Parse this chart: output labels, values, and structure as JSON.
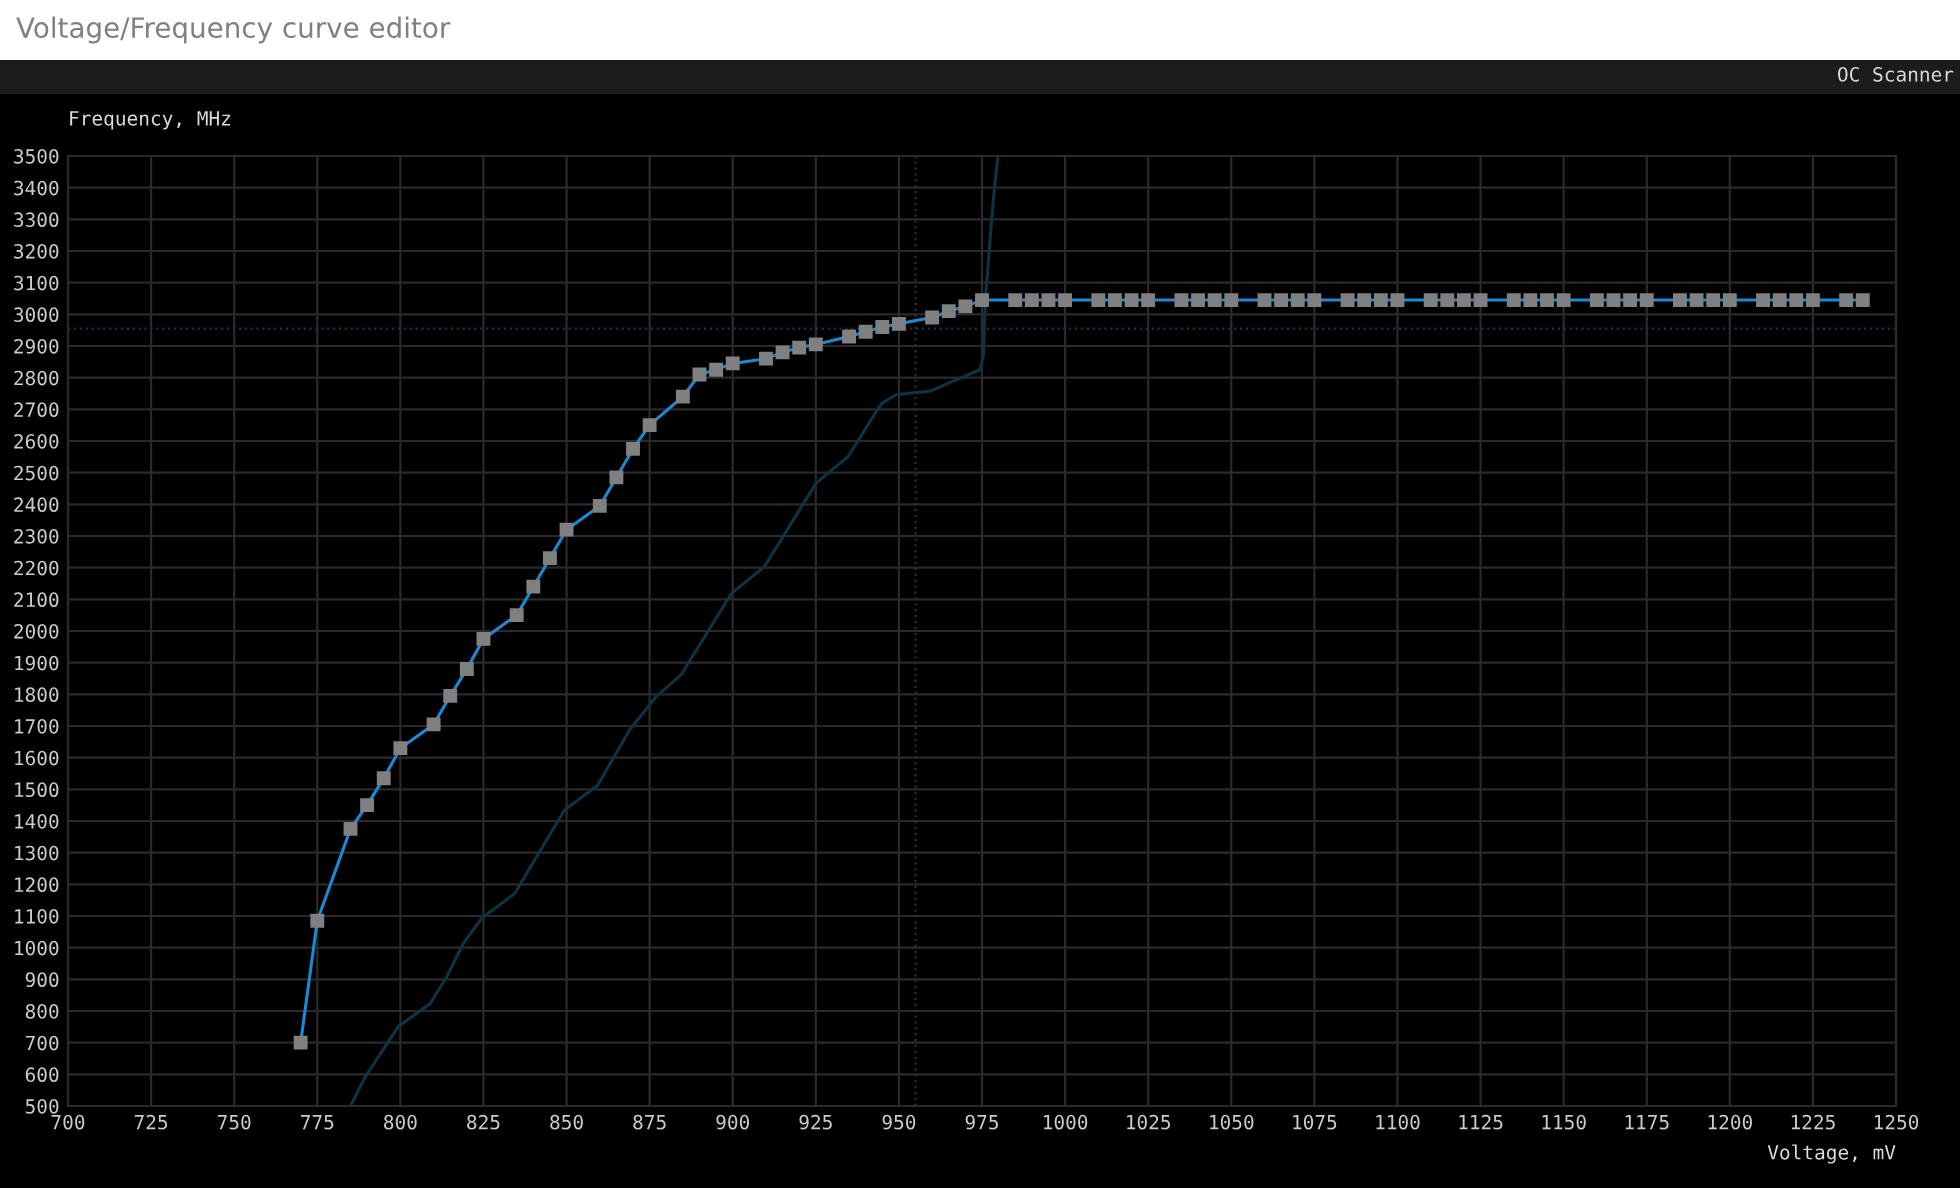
{
  "chart_data": {
    "type": "line",
    "title": "Voltage/Frequency curve editor",
    "xlabel": "Voltage, mV",
    "ylabel": "Frequency, MHz",
    "annotations": [
      "OC Scanner"
    ],
    "xlim": [
      700,
      1250
    ],
    "ylim": [
      500,
      3500
    ],
    "xticks": [
      700,
      725,
      750,
      775,
      800,
      825,
      850,
      875,
      900,
      925,
      950,
      975,
      1000,
      1025,
      1050,
      1075,
      1100,
      1125,
      1150,
      1175,
      1200,
      1225,
      1250
    ],
    "yticks": [
      500,
      600,
      700,
      800,
      900,
      1000,
      1100,
      1200,
      1300,
      1400,
      1500,
      1600,
      1700,
      1800,
      1900,
      2000,
      2100,
      2200,
      2300,
      2400,
      2500,
      2600,
      2700,
      2800,
      2900,
      3000,
      3100,
      3200,
      3300,
      3400,
      3500
    ],
    "grid": true,
    "legend": false,
    "ref_lines": [
      {
        "axis": "y",
        "value": 2955,
        "color": "#103848",
        "line_style": "dotted"
      },
      {
        "axis": "x",
        "value": 955,
        "color": "#103848",
        "line_style": "dotted"
      }
    ],
    "series": [
      {
        "color": "#0d3344",
        "marker": "none",
        "line_style": "solid",
        "x": [
          785,
          789.5,
          799.3,
          809,
          814,
          819,
          824.4,
          834.4,
          849.4,
          859.4,
          869,
          877,
          884.5,
          899.6,
          909.6,
          925,
          934.7,
          944.8,
          949.3,
          959.3,
          964.7,
          974.4,
          975.4,
          976,
          978.4,
          979.8
        ],
        "values": [
          500,
          593,
          750,
          824,
          909,
          1014,
          1092,
          1171,
          1435,
          1513,
          1688,
          1793,
          1862,
          2119,
          2204,
          2466,
          2551,
          2719,
          2747,
          2757,
          2782,
          2825,
          2867,
          3045,
          3362,
          3500
        ]
      },
      {
        "color": "#1a8ad4",
        "marker": "square",
        "line_style": "solid",
        "x": [
          770,
          775,
          785,
          790,
          795,
          800,
          810,
          815,
          820,
          825,
          835,
          840,
          845,
          850,
          860,
          865,
          870,
          875,
          885,
          890,
          895,
          900,
          910,
          915,
          920,
          925,
          935,
          940,
          945,
          950,
          960,
          965,
          970,
          975,
          985,
          990,
          995,
          1000,
          1010,
          1015,
          1020,
          1025,
          1035,
          1040,
          1045,
          1050,
          1060,
          1065,
          1070,
          1075,
          1085,
          1090,
          1095,
          1100,
          1110,
          1115,
          1120,
          1125,
          1135,
          1140,
          1145,
          1150,
          1160,
          1165,
          1170,
          1175,
          1185,
          1190,
          1195,
          1200,
          1210,
          1215,
          1220,
          1225,
          1235,
          1240
        ],
        "values": [
          700,
          1085,
          1375,
          1450,
          1535,
          1630,
          1705,
          1795,
          1880,
          1975,
          2050,
          2140,
          2230,
          2320,
          2395,
          2485,
          2575,
          2650,
          2740,
          2810,
          2825,
          2845,
          2860,
          2880,
          2895,
          2905,
          2930,
          2945,
          2960,
          2970,
          2990,
          3010,
          3025,
          3045,
          3045,
          3045,
          3045,
          3045,
          3045,
          3045,
          3045,
          3045,
          3045,
          3045,
          3045,
          3045,
          3045,
          3045,
          3045,
          3045,
          3045,
          3045,
          3045,
          3045,
          3045,
          3045,
          3045,
          3045,
          3045,
          3045,
          3045,
          3045,
          3045,
          3045,
          3045,
          3045,
          3045,
          3045,
          3045,
          3045,
          3045,
          3045,
          3045,
          3045,
          3045,
          3045
        ]
      }
    ]
  }
}
